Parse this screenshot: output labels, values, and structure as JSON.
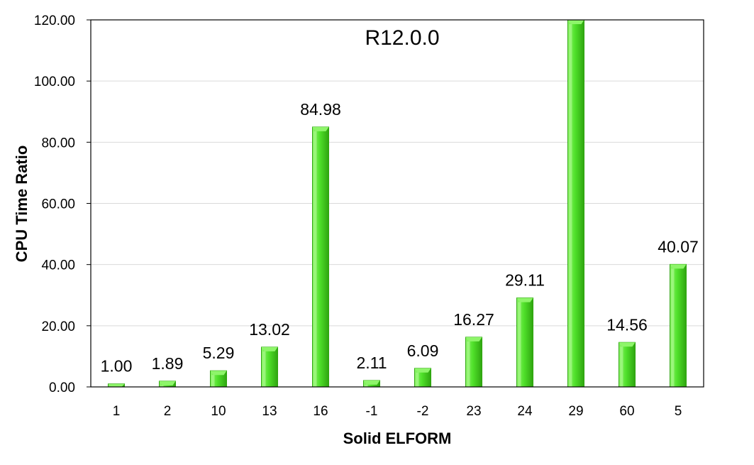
{
  "chart_data": {
    "type": "bar",
    "title": "R12.0.0",
    "xlabel": "Solid ELFORM",
    "ylabel": "CPU Time Ratio",
    "ylim": [
      0,
      120
    ],
    "yticks": [
      0,
      20,
      40,
      60,
      80,
      100,
      120
    ],
    "ytick_labels": [
      "0.00",
      "20.00",
      "40.00",
      "60.00",
      "80.00",
      "100.00",
      "120.00"
    ],
    "categories": [
      "1",
      "2",
      "10",
      "13",
      "16",
      "-1",
      "-2",
      "23",
      "24",
      "29",
      "60",
      "5"
    ],
    "values": [
      1.0,
      1.89,
      5.29,
      13.02,
      84.98,
      2.11,
      6.09,
      16.27,
      29.11,
      120,
      14.56,
      40.07
    ],
    "data_labels": [
      "1.00",
      "1.89",
      "5.29",
      "13.02",
      "84.98",
      "2.11",
      "6.09",
      "16.27",
      "29.11",
      "",
      "14.56",
      "40.07"
    ],
    "grid": true,
    "legend": "none",
    "colors": {
      "bar_light": "#8ef56a",
      "bar_mid": "#4fe02a",
      "bar_dark": "#2fa510",
      "gridline": "#d9d9d9",
      "axis": "#000000"
    }
  }
}
